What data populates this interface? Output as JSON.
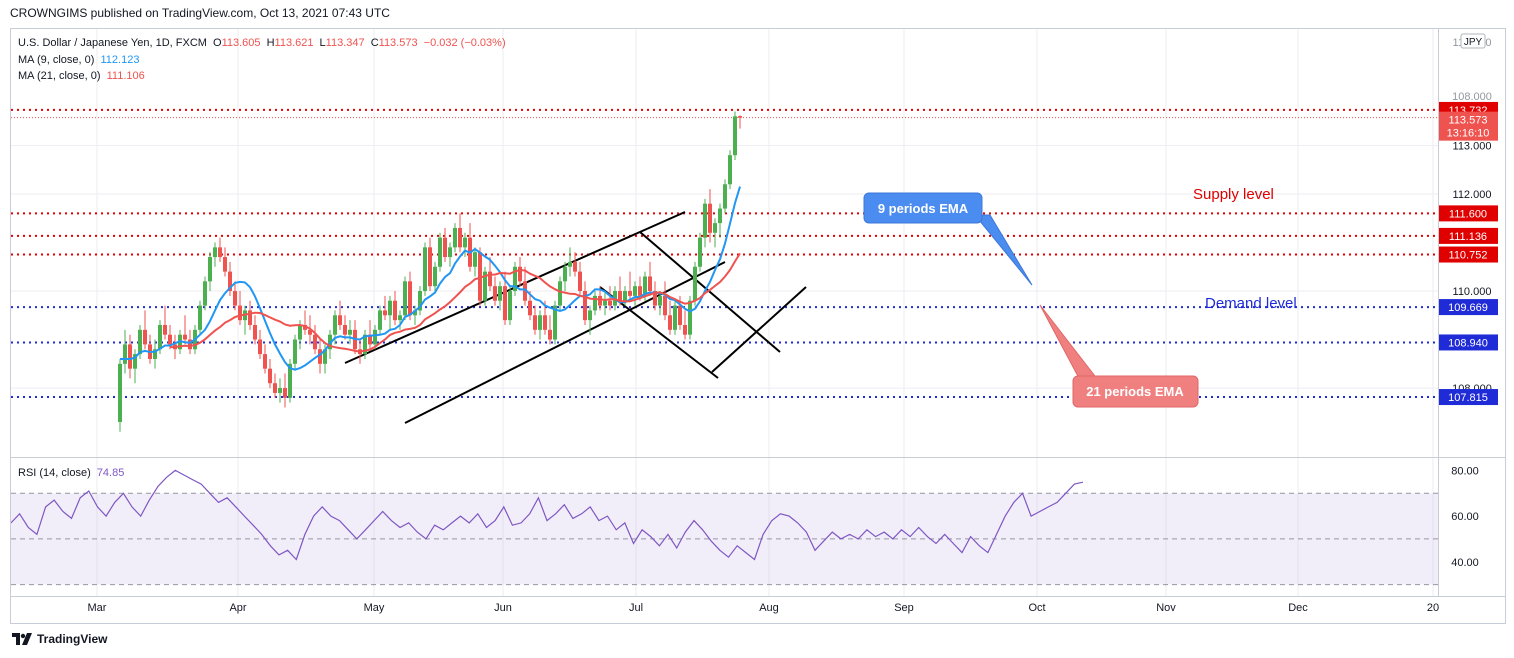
{
  "header": {
    "published": "CROWNGIMS published on TradingView.com, Oct 13, 2021 07:43 UTC"
  },
  "legend": {
    "symbol": "U.S. Dollar / Japanese Yen, 1D, FXCM",
    "ohlc": {
      "o_label": "O",
      "o": "113.605",
      "h_label": "H",
      "h": "113.621",
      "l_label": "L",
      "l": "113.347",
      "c_label": "C",
      "c": "113.573",
      "change": "−0.032 (−0.03%)"
    },
    "ma9_label": "MA (9, close, 0)",
    "ma9_value": "112.123",
    "ma21_label": "MA (21, close, 0)",
    "ma21_value": "111.106",
    "rsi_label": "RSI (14, close)",
    "rsi_value": "74.85"
  },
  "footer": {
    "brand": "TradingView"
  },
  "colors": {
    "up": "#4caf50",
    "down": "#ef5350",
    "ma9": "#2196f3",
    "ma21": "#ef5350",
    "rsi": "#7e57c2",
    "red_level": "#e00000",
    "blue_level": "#1e2bd6"
  },
  "chart_data": {
    "type": "candlestick",
    "currency_badge": "JPY",
    "price_axis": {
      "min": 106.6,
      "max": 115.4,
      "ticks": [
        "113.000",
        "112.000",
        "110.000",
        "108.000"
      ]
    },
    "price_axis_partial_ticks": [
      "114.000",
      "108.000"
    ],
    "time_axis": {
      "labels": [
        "Mar",
        "Apr",
        "May",
        "Jun",
        "Jul",
        "Aug",
        "Sep",
        "Oct",
        "Nov",
        "Dec",
        "20"
      ]
    },
    "levels": [
      {
        "price": 113.732,
        "label": "113.732",
        "color": "#e00000"
      },
      {
        "price": 111.6,
        "label": "111.600",
        "color": "#e00000"
      },
      {
        "price": 111.136,
        "label": "111.136",
        "color": "#e00000"
      },
      {
        "price": 110.752,
        "label": "110.752",
        "color": "#e00000"
      },
      {
        "price": 109.669,
        "label": "109.669",
        "color": "#1e2bd6"
      },
      {
        "price": 108.94,
        "label": "108.940",
        "color": "#1e2bd6"
      },
      {
        "price": 107.815,
        "label": "107.815",
        "color": "#1e2bd6"
      }
    ],
    "last_price": {
      "price": 113.573,
      "label": "113.573",
      "countdown": "13:16:10"
    },
    "annotations": {
      "supply": "Supply level",
      "demand": "Demand level",
      "ema9": "9 periods EMA",
      "ema21": "21 periods EMA"
    },
    "candles": [
      [
        107.3,
        108.6,
        107.1,
        108.5
      ],
      [
        108.5,
        109.2,
        108.3,
        108.9
      ],
      [
        108.9,
        109.1,
        108.2,
        108.4
      ],
      [
        108.4,
        108.8,
        108.1,
        108.7
      ],
      [
        108.7,
        109.3,
        108.6,
        109.2
      ],
      [
        109.2,
        109.6,
        108.8,
        108.9
      ],
      [
        108.9,
        109.1,
        108.5,
        108.6
      ],
      [
        108.6,
        109.0,
        108.4,
        108.8
      ],
      [
        108.8,
        109.4,
        108.7,
        109.3
      ],
      [
        109.3,
        109.7,
        109.0,
        109.1
      ],
      [
        109.1,
        109.3,
        108.8,
        108.9
      ],
      [
        108.9,
        109.1,
        108.6,
        108.8
      ],
      [
        108.8,
        109.2,
        108.7,
        109.1
      ],
      [
        109.1,
        109.5,
        108.9,
        109.0
      ],
      [
        109.0,
        109.2,
        108.7,
        108.8
      ],
      [
        108.8,
        109.3,
        108.7,
        109.2
      ],
      [
        109.2,
        109.8,
        109.1,
        109.7
      ],
      [
        109.7,
        110.3,
        109.6,
        110.2
      ],
      [
        110.2,
        110.8,
        110.0,
        110.7
      ],
      [
        110.7,
        111.0,
        110.5,
        110.9
      ],
      [
        110.9,
        111.1,
        110.6,
        110.7
      ],
      [
        110.7,
        110.9,
        110.3,
        110.4
      ],
      [
        110.4,
        110.6,
        109.9,
        110.0
      ],
      [
        110.0,
        110.2,
        109.6,
        109.7
      ],
      [
        109.7,
        110.0,
        109.3,
        109.4
      ],
      [
        109.4,
        109.7,
        109.1,
        109.6
      ],
      [
        109.6,
        109.8,
        109.2,
        109.3
      ],
      [
        109.3,
        109.5,
        108.9,
        109.0
      ],
      [
        109.0,
        109.2,
        108.6,
        108.7
      ],
      [
        108.7,
        108.9,
        108.3,
        108.4
      ],
      [
        108.4,
        108.6,
        108.0,
        108.1
      ],
      [
        108.1,
        108.3,
        107.8,
        107.9
      ],
      [
        107.9,
        108.2,
        107.7,
        108.0
      ],
      [
        108.0,
        108.3,
        107.6,
        107.8
      ],
      [
        107.8,
        108.6,
        107.7,
        108.5
      ],
      [
        108.5,
        109.1,
        108.4,
        109.0
      ],
      [
        109.0,
        109.4,
        108.8,
        109.3
      ],
      [
        109.3,
        109.6,
        109.1,
        109.2
      ],
      [
        109.2,
        109.5,
        108.9,
        109.1
      ],
      [
        109.1,
        109.3,
        108.7,
        108.8
      ],
      [
        108.8,
        109.0,
        108.3,
        108.5
      ],
      [
        108.5,
        108.9,
        108.3,
        108.8
      ],
      [
        108.8,
        109.2,
        108.6,
        109.1
      ],
      [
        109.1,
        109.6,
        108.9,
        109.5
      ],
      [
        109.5,
        109.8,
        109.2,
        109.3
      ],
      [
        109.3,
        109.5,
        109.0,
        109.1
      ],
      [
        109.1,
        109.4,
        108.9,
        109.2
      ],
      [
        109.2,
        109.4,
        108.7,
        108.8
      ],
      [
        108.8,
        109.0,
        108.5,
        108.7
      ],
      [
        108.7,
        109.2,
        108.6,
        109.1
      ],
      [
        109.1,
        109.4,
        108.8,
        108.9
      ],
      [
        108.9,
        109.3,
        108.8,
        109.2
      ],
      [
        109.2,
        109.7,
        109.1,
        109.6
      ],
      [
        109.6,
        109.9,
        109.4,
        109.5
      ],
      [
        109.5,
        109.9,
        109.2,
        109.8
      ],
      [
        109.8,
        110.0,
        109.3,
        109.4
      ],
      [
        109.4,
        109.6,
        109.2,
        109.5
      ],
      [
        109.5,
        110.3,
        109.4,
        110.2
      ],
      [
        110.2,
        110.4,
        109.4,
        109.5
      ],
      [
        109.5,
        109.7,
        109.3,
        109.6
      ],
      [
        109.6,
        110.1,
        109.5,
        110.0
      ],
      [
        110.0,
        111.0,
        109.9,
        110.9
      ],
      [
        110.9,
        111.1,
        110.0,
        110.1
      ],
      [
        110.1,
        110.6,
        110.0,
        110.5
      ],
      [
        110.5,
        111.2,
        110.4,
        111.1
      ],
      [
        111.1,
        111.3,
        110.6,
        110.7
      ],
      [
        110.7,
        111.0,
        110.5,
        110.9
      ],
      [
        110.9,
        111.4,
        110.8,
        111.3
      ],
      [
        111.3,
        111.6,
        110.8,
        110.9
      ],
      [
        110.9,
        111.2,
        110.7,
        111.1
      ],
      [
        111.1,
        111.4,
        110.4,
        110.5
      ],
      [
        110.5,
        110.9,
        110.3,
        110.8
      ],
      [
        110.8,
        110.9,
        109.7,
        109.8
      ],
      [
        109.8,
        110.5,
        109.7,
        110.4
      ],
      [
        110.4,
        110.7,
        110.0,
        110.1
      ],
      [
        110.1,
        110.3,
        109.7,
        109.8
      ],
      [
        109.8,
        110.2,
        109.6,
        110.1
      ],
      [
        110.1,
        110.4,
        109.3,
        109.4
      ],
      [
        109.4,
        110.1,
        109.3,
        110.0
      ],
      [
        110.0,
        110.6,
        109.9,
        110.5
      ],
      [
        110.5,
        110.7,
        110.1,
        110.2
      ],
      [
        110.2,
        110.5,
        109.7,
        109.8
      ],
      [
        109.8,
        110.0,
        109.4,
        109.5
      ],
      [
        109.5,
        109.7,
        109.1,
        109.2
      ],
      [
        109.2,
        109.6,
        109.0,
        109.5
      ],
      [
        109.5,
        109.8,
        109.1,
        109.2
      ],
      [
        109.2,
        109.5,
        108.9,
        109.0
      ],
      [
        109.0,
        109.8,
        108.9,
        109.7
      ],
      [
        109.7,
        110.3,
        109.6,
        110.2
      ],
      [
        110.2,
        110.6,
        110.0,
        110.5
      ],
      [
        110.5,
        110.9,
        110.3,
        110.6
      ],
      [
        110.6,
        110.8,
        110.3,
        110.4
      ],
      [
        110.4,
        110.6,
        109.9,
        110.0
      ],
      [
        110.0,
        110.2,
        109.3,
        109.4
      ],
      [
        109.4,
        109.7,
        109.1,
        109.6
      ],
      [
        109.6,
        110.0,
        109.5,
        109.9
      ],
      [
        109.9,
        110.1,
        109.6,
        109.7
      ],
      [
        109.7,
        110.0,
        109.5,
        109.8
      ],
      [
        109.8,
        110.1,
        109.6,
        109.7
      ],
      [
        109.7,
        110.1,
        109.6,
        110.0
      ],
      [
        110.0,
        110.3,
        109.7,
        109.8
      ],
      [
        109.8,
        110.1,
        109.7,
        110.0
      ],
      [
        110.0,
        110.4,
        109.8,
        109.9
      ],
      [
        109.9,
        110.2,
        109.7,
        110.1
      ],
      [
        110.1,
        110.3,
        109.8,
        109.9
      ],
      [
        109.9,
        110.4,
        109.8,
        110.3
      ],
      [
        110.3,
        110.6,
        109.9,
        110.0
      ],
      [
        110.0,
        110.2,
        109.6,
        109.7
      ],
      [
        109.7,
        110.0,
        109.5,
        109.9
      ],
      [
        109.9,
        110.2,
        109.4,
        109.5
      ],
      [
        109.5,
        109.8,
        109.1,
        109.2
      ],
      [
        109.2,
        109.8,
        109.1,
        109.7
      ],
      [
        109.7,
        109.9,
        109.2,
        109.3
      ],
      [
        109.3,
        109.6,
        109.0,
        109.1
      ],
      [
        109.1,
        109.9,
        109.0,
        109.8
      ],
      [
        109.8,
        110.6,
        109.7,
        110.5
      ],
      [
        110.5,
        111.2,
        110.4,
        111.1
      ],
      [
        111.1,
        111.9,
        110.9,
        111.8
      ],
      [
        111.8,
        112.1,
        111.0,
        111.2
      ],
      [
        111.2,
        111.5,
        110.9,
        111.4
      ],
      [
        111.4,
        111.8,
        111.1,
        111.7
      ],
      [
        111.7,
        112.3,
        111.6,
        112.2
      ],
      [
        112.2,
        112.9,
        112.1,
        112.8
      ],
      [
        112.8,
        113.7,
        112.7,
        113.6
      ],
      [
        113.605,
        113.621,
        113.347,
        113.573
      ]
    ],
    "rsi": {
      "axis_ticks": [
        "80.00",
        "60.00",
        "40.00"
      ],
      "band": [
        30,
        70
      ],
      "levels": [
        30,
        50,
        70
      ],
      "range": [
        25,
        85
      ],
      "values": [
        57,
        61,
        55,
        52,
        64,
        67,
        62,
        59,
        68,
        71,
        64,
        60,
        66,
        70,
        64,
        60,
        67,
        73,
        77,
        80,
        78,
        76,
        74,
        70,
        66,
        68,
        64,
        60,
        56,
        52,
        47,
        43,
        45,
        41,
        52,
        60,
        64,
        60,
        58,
        54,
        50,
        54,
        58,
        62,
        58,
        55,
        57,
        53,
        50,
        56,
        54,
        57,
        60,
        57,
        61,
        55,
        58,
        64,
        56,
        57,
        61,
        68,
        58,
        61,
        65,
        59,
        61,
        64,
        58,
        60,
        54,
        57,
        48,
        54,
        51,
        47,
        52,
        46,
        53,
        58,
        54,
        49,
        45,
        42,
        47,
        44,
        41,
        52,
        58,
        61,
        60,
        57,
        53,
        45,
        49,
        53,
        50,
        52,
        50,
        54,
        51,
        53,
        50,
        54,
        51,
        55,
        51,
        48,
        52,
        48,
        44,
        51,
        47,
        44,
        52,
        60,
        66,
        70,
        60,
        62,
        64,
        66,
        70,
        74,
        74.85
      ]
    }
  }
}
